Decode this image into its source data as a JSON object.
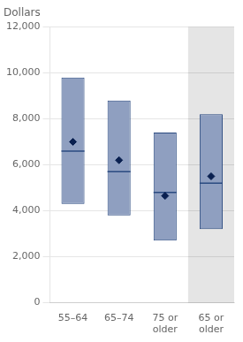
{
  "chart_data": {
    "type": "box",
    "ylabel": "Dollars",
    "categories": [
      "55–64",
      "65–74",
      "75 or\nolder",
      "65 or\nolder"
    ],
    "series": [
      {
        "type": "box",
        "color": "#8f9fc0",
        "q1": [
          4300,
          3800,
          2700,
          3200
        ],
        "q3": [
          9800,
          8800,
          7400,
          8200
        ]
      },
      {
        "type": "median",
        "color": "#2a4a80",
        "values": [
          6600,
          5700,
          4800,
          5200
        ]
      },
      {
        "type": "scatter",
        "marker": "diamond",
        "color": "#0a2050",
        "values": [
          7000,
          6200,
          4650,
          5500
        ]
      },
      {
        "type": "highlight",
        "color": "#e5e5e5",
        "categories": [
          "65 or\nolder"
        ]
      }
    ],
    "ylim": [
      0,
      12000
    ],
    "yticks": [
      0,
      {
        "value": 2000,
        "label": "2,000"
      },
      {
        "value": 4000,
        "label": "4,000"
      },
      {
        "value": 6000,
        "label": "6,000"
      },
      {
        "value": 8000,
        "label": "8,000"
      },
      {
        "value": 10000,
        "label": "10,000"
      },
      {
        "value": 12000,
        "label": "12,000"
      }
    ],
    "grid": true
  }
}
